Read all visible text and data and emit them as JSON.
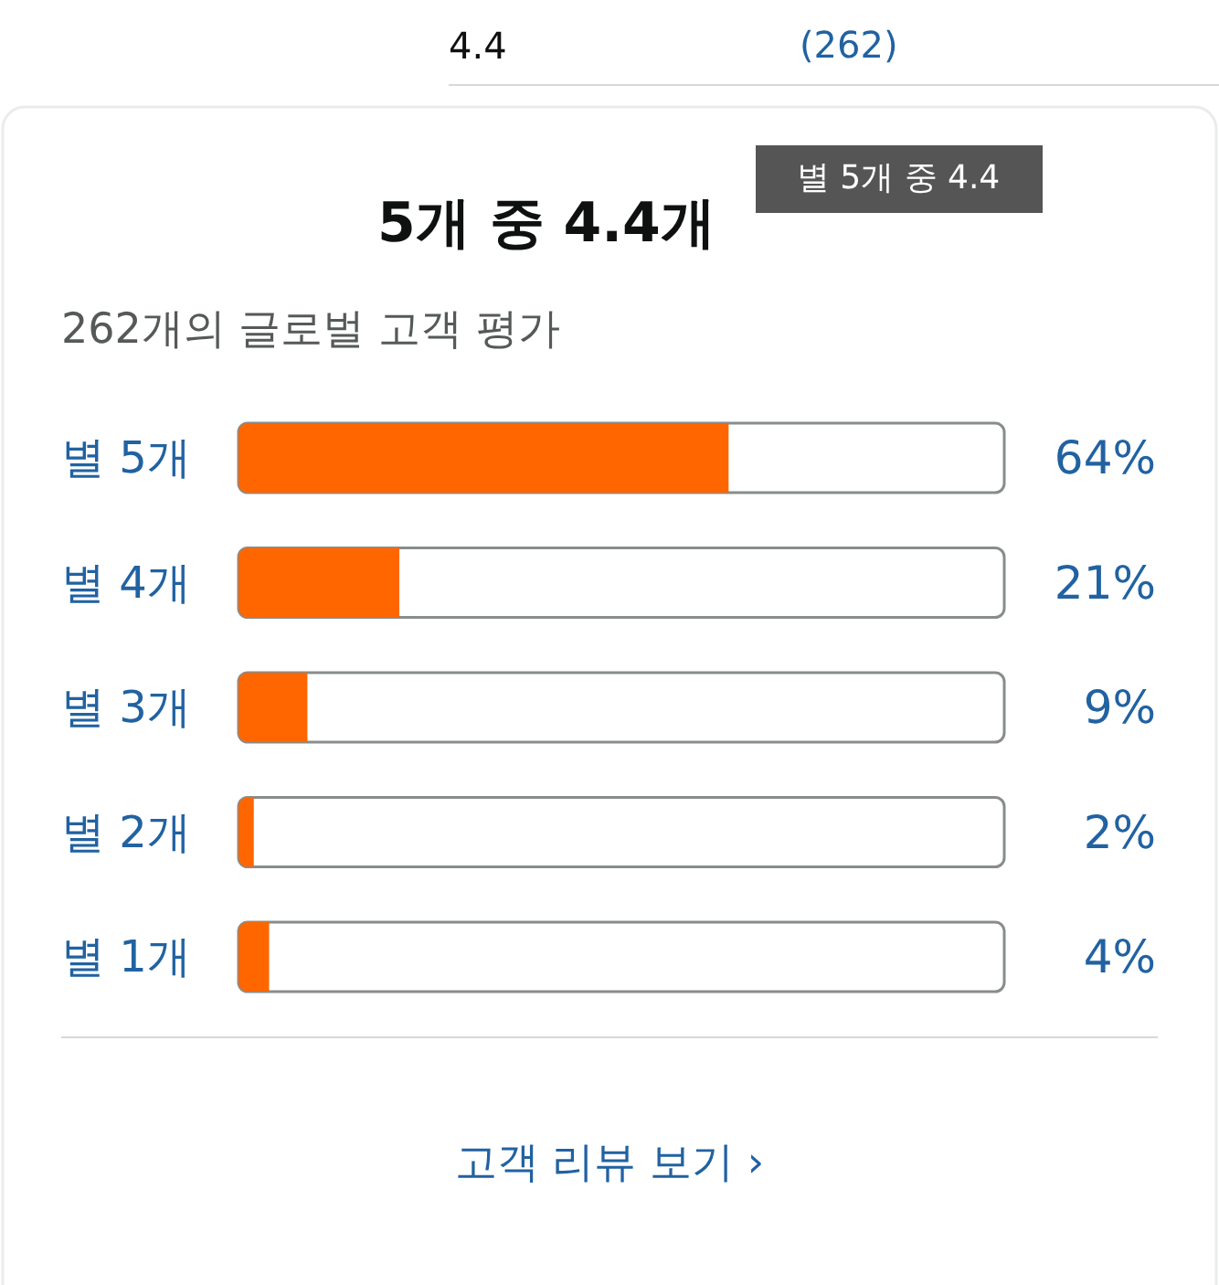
{
  "chart_data": {
    "type": "bar",
    "orientation": "horizontal",
    "title": "5개 중 4.4개",
    "subtitle": "262개의 글로벌 고객 평가",
    "categories": [
      "별 5개",
      "별 4개",
      "별 3개",
      "별 2개",
      "별 1개"
    ],
    "values": [
      64,
      21,
      9,
      2,
      4
    ],
    "value_labels": [
      "64%",
      "21%",
      "9%",
      "2%",
      "4%"
    ],
    "color": "#ff6600",
    "xlim": [
      0,
      100
    ],
    "tick_labels": "y",
    "annotations": [
      "4.4",
      "(262)",
      "별 5개 중 4.4",
      "고객 리뷰 보기 ›"
    ]
  }
}
